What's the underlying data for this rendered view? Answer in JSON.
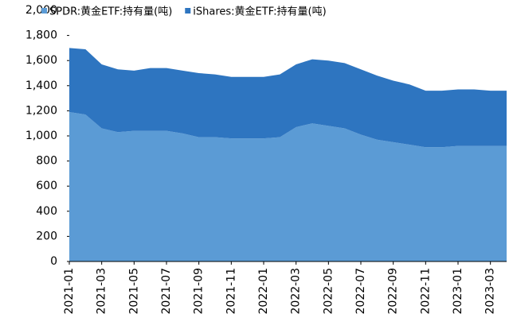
{
  "chart_data": {
    "type": "stacked_area",
    "categories": [
      "2021-01",
      null,
      "2021-03",
      null,
      "2021-05",
      null,
      "2021-07",
      null,
      "2021-09",
      null,
      "2021-11",
      null,
      "2022-01",
      null,
      "2022-03",
      null,
      "2022-05",
      null,
      "2022-07",
      null,
      "2022-09",
      null,
      "2022-11",
      null,
      "2023-01",
      null,
      "2023-03",
      null
    ],
    "series": [
      {
        "name": "SPDR:黄金ETF:持有量(吨)",
        "color": "#5b9bd5",
        "values": [
          1190,
          1170,
          1060,
          1030,
          1040,
          1040,
          1040,
          1020,
          990,
          990,
          980,
          980,
          980,
          990,
          1070,
          1100,
          1080,
          1060,
          1010,
          970,
          950,
          930,
          910,
          910,
          920,
          920,
          920,
          920
        ]
      },
      {
        "name": "iShares:黄金ETF:持有量(吨)",
        "color": "#2e75c0",
        "values": [
          510,
          520,
          510,
          500,
          480,
          500,
          500,
          500,
          510,
          500,
          490,
          490,
          490,
          500,
          500,
          510,
          520,
          520,
          520,
          510,
          490,
          480,
          450,
          450,
          450,
          450,
          440,
          440
        ]
      }
    ],
    "ylim": [
      0,
      2000
    ],
    "yticks": [
      0,
      200,
      400,
      600,
      800,
      {
        "value": 1000,
        "label": "1,000"
      },
      {
        "value": 1200,
        "label": "1,200"
      },
      {
        "value": 1400,
        "label": "1,400"
      },
      {
        "value": 1600,
        "label": "1,600"
      },
      {
        "value": 1800,
        "label": "1,800"
      },
      {
        "value": 2000,
        "label": "2,000"
      }
    ],
    "legend": "top"
  }
}
